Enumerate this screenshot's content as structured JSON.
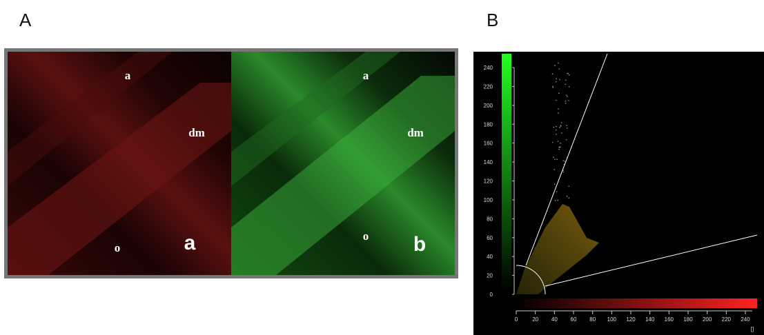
{
  "panel_a": {
    "letter": "A",
    "left_labels": {
      "top": "a",
      "middle": "dm",
      "bottom": "o",
      "panel": "a"
    },
    "right_labels": {
      "top": "a",
      "middle": "dm",
      "bottom": "o",
      "panel": "b"
    }
  },
  "panel_b": {
    "letter": "B",
    "y_ticks": [
      0,
      20,
      40,
      60,
      80,
      100,
      120,
      140,
      160,
      180,
      200,
      220,
      240
    ],
    "x_ticks": [
      0,
      20,
      40,
      60,
      80,
      100,
      120,
      140,
      160,
      180,
      200,
      220,
      240
    ],
    "unit_label": "[]"
  }
}
